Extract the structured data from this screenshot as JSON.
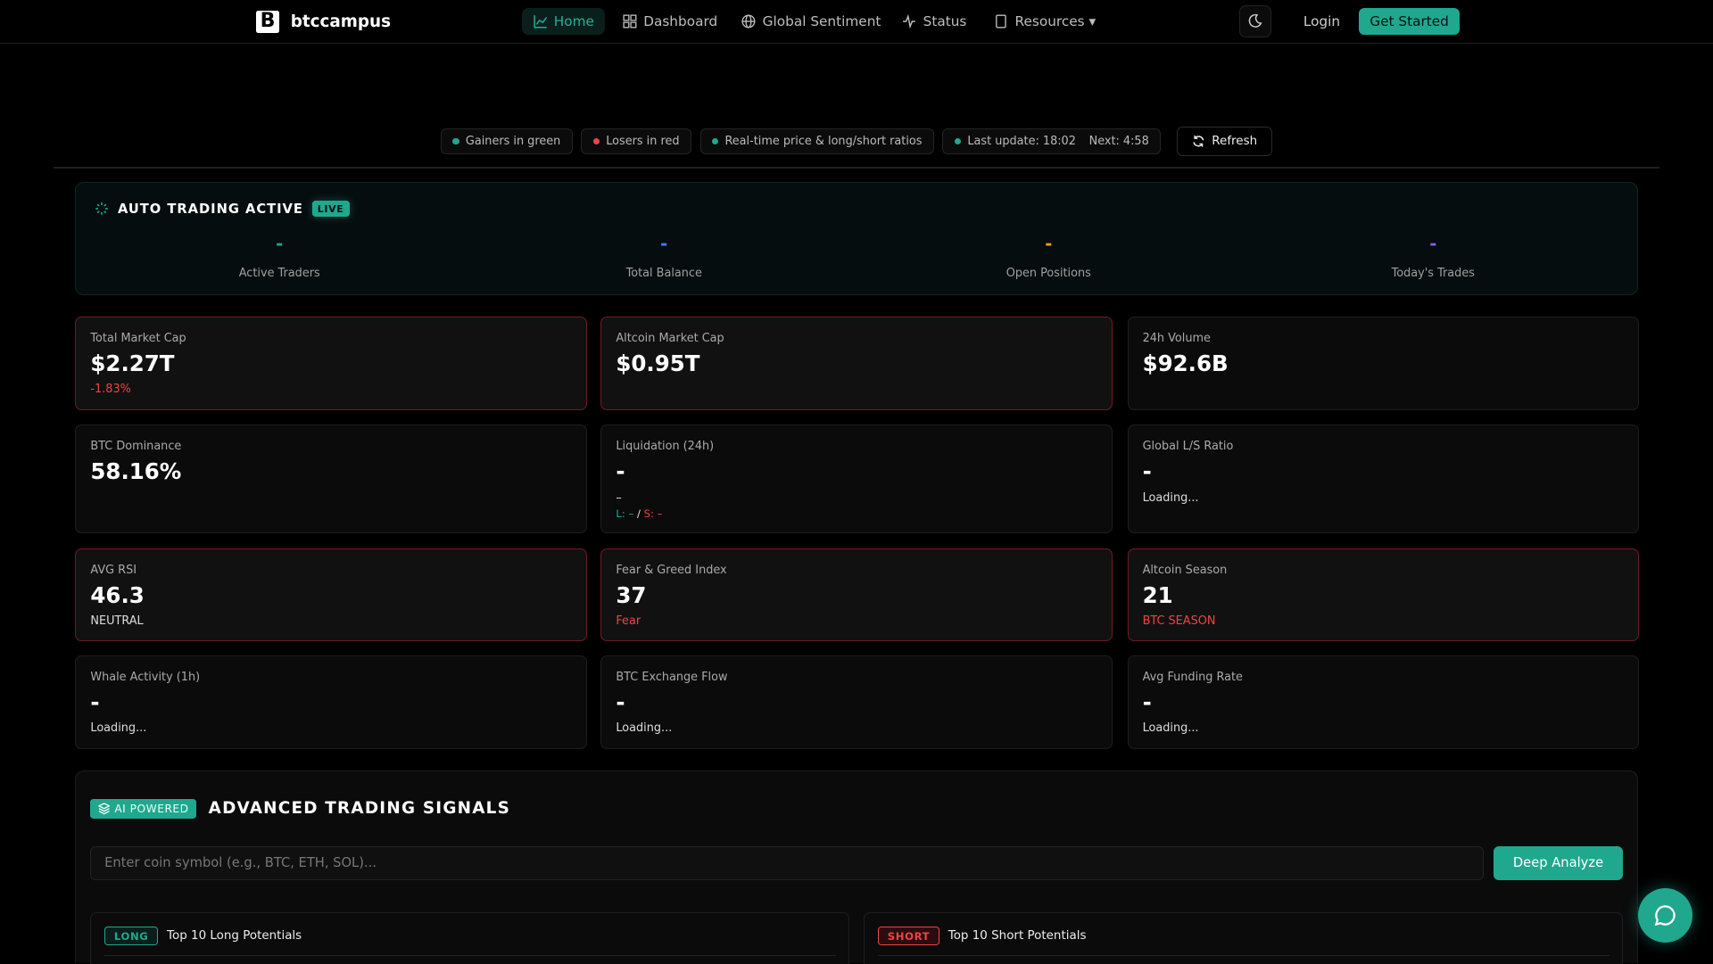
{
  "brand": {
    "logo_letter": "B",
    "name": "btccampus"
  },
  "nav": {
    "items": [
      {
        "label": "Home",
        "icon": "chart-line-icon",
        "active": true
      },
      {
        "label": "Dashboard",
        "icon": "grid-icon"
      },
      {
        "label": "Global Sentiment",
        "icon": "globe-icon"
      },
      {
        "label": "Status",
        "icon": "activity-icon"
      },
      {
        "label": "Resources ▾",
        "icon": "book-icon"
      }
    ],
    "theme_icon": "moon-icon",
    "login": "Login",
    "get_started": "Get Started"
  },
  "legend": {
    "gainers": "Gainers in green",
    "losers": "Losers in red",
    "realtime": "Real-time price & long/short ratios",
    "last_update": "Last update: 18:02",
    "next": "Next: 4:58",
    "refresh": "Refresh"
  },
  "auto_trading": {
    "title": "AUTO TRADING ACTIVE",
    "badge": "LIVE",
    "stats": [
      {
        "value": "-",
        "label": "Active Traders",
        "color": "#20a88f"
      },
      {
        "value": "-",
        "label": "Total Balance",
        "color": "#3b82f6"
      },
      {
        "value": "-",
        "label": "Open Positions",
        "color": "#f59e0b"
      },
      {
        "value": "-",
        "label": "Today's Trades",
        "color": "#8b5cf6"
      }
    ]
  },
  "cards": [
    {
      "title": "Total Market Cap",
      "value": "$2.27T",
      "sub": "-1.83%",
      "sub_color": "#ef4444",
      "alert": true
    },
    {
      "title": "Altcoin Market Cap",
      "value": "$0.95T",
      "sub": "",
      "alert": true
    },
    {
      "title": "24h Volume",
      "value": "$92.6B",
      "sub": "",
      "alert": false
    },
    {
      "title": "BTC Dominance",
      "value": "58.16%",
      "sub": "",
      "alert": false
    },
    {
      "title": "Liquidation (24h)",
      "value": "-",
      "sub": "–",
      "long": "L: –",
      "short": "S: –",
      "alert": false
    },
    {
      "title": "Global L/S Ratio",
      "value": "-",
      "sub": "Loading...",
      "alert": false
    },
    {
      "title": "AVG RSI",
      "value": "46.3",
      "sub": "NEUTRAL",
      "alert": true
    },
    {
      "title": "Fear & Greed Index",
      "value": "37",
      "sub": "Fear",
      "sub_color": "#ef4444",
      "alert": true
    },
    {
      "title": "Altcoin Season",
      "value": "21",
      "sub": "BTC SEASON",
      "sub_color": "#ef4444",
      "alert": true
    },
    {
      "title": "Whale Activity (1h)",
      "value": "-",
      "sub": "Loading...",
      "alert": false
    },
    {
      "title": "BTC Exchange Flow",
      "value": "-",
      "sub": "Loading...",
      "alert": false
    },
    {
      "title": "Avg Funding Rate",
      "value": "-",
      "sub": "Loading...",
      "alert": false
    }
  ],
  "signals": {
    "badge": "AI POWERED",
    "title": "ADVANCED TRADING SIGNALS",
    "input_placeholder": "Enter coin symbol (e.g., BTC, ETH, SOL)...",
    "input_value": "",
    "analyze": "Deep Analyze",
    "long": {
      "badge": "LONG",
      "title": "Top 10 Long Potentials"
    },
    "short": {
      "badge": "SHORT",
      "title": "Top 10 Short Potentials"
    }
  },
  "chat_icon": "chat-bubble-icon",
  "colors": {
    "accent": "#20a88f",
    "danger": "#ef4444"
  }
}
